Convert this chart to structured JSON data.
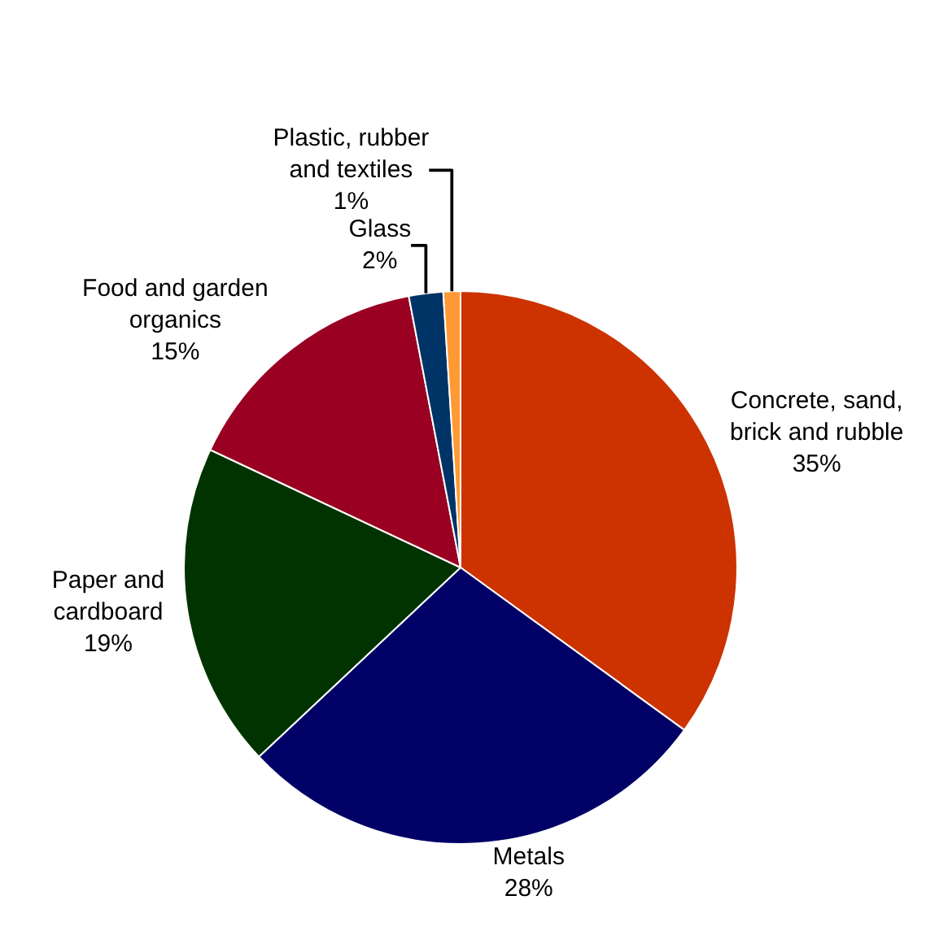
{
  "chart_data": {
    "type": "pie",
    "categories": [
      "Concrete, sand, brick and rubble",
      "Metals",
      "Paper and cardboard",
      "Food and garden organics",
      "Glass",
      "Plastic, rubber and textiles"
    ],
    "values": [
      35,
      28,
      19,
      15,
      2,
      1
    ],
    "colors": [
      "#cc3300",
      "#000066",
      "#003300",
      "#990022",
      "#003366",
      "#ff9933"
    ],
    "value_labels": [
      "35%",
      "28%",
      "19%",
      "15%",
      "2%",
      "1%"
    ],
    "legend": false
  }
}
